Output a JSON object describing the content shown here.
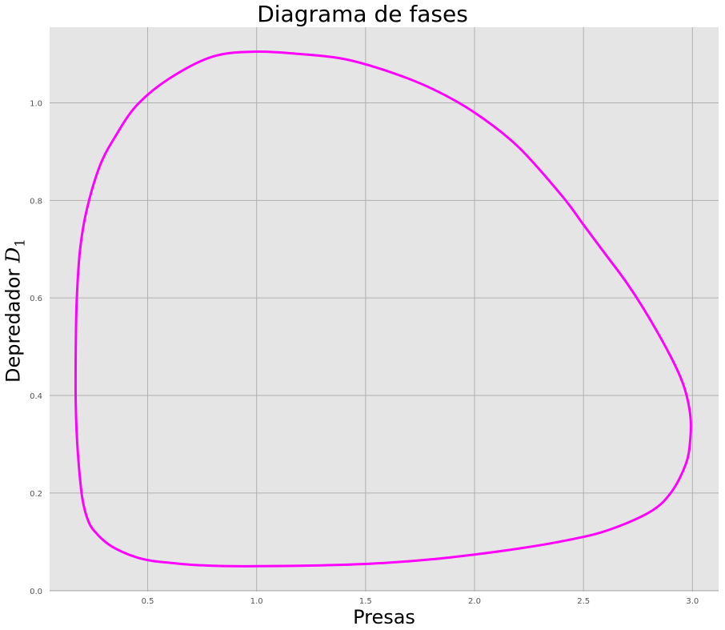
{
  "chart_data": {
    "type": "line",
    "title": "Diagrama de fases",
    "xlabel": "Presas",
    "ylabel_text": "Depredador",
    "ylabel_symbol": "D",
    "ylabel_subscript": "1",
    "xlim": [
      0.05,
      3.12
    ],
    "ylim": [
      -0.002,
      1.155
    ],
    "xticks": [
      "0.5",
      "1.0",
      "1.5",
      "2.0",
      "2.5",
      "3.0"
    ],
    "yticks": [
      "0.0",
      "0.2",
      "0.4",
      "0.6",
      "0.8",
      "1.0"
    ],
    "grid": true,
    "line_color": "#ff00ff",
    "background_color": "#e5e5e5",
    "series": [
      {
        "x": [
          1.0,
          1.2,
          1.4,
          1.6,
          1.8,
          2.0,
          2.2,
          2.4,
          2.6,
          2.8,
          2.9,
          2.97,
          2.99,
          2.99,
          2.96,
          2.9,
          2.8,
          2.7,
          2.6,
          2.5,
          2.4,
          2.2,
          2.0,
          1.8,
          1.6,
          1.4,
          1.2,
          1.0,
          0.8,
          0.6,
          0.45,
          0.35,
          0.28,
          0.22,
          0.19,
          0.175,
          0.17,
          0.17,
          0.18,
          0.2,
          0.23,
          0.27,
          0.32,
          0.38,
          0.45,
          0.52,
          0.6,
          0.7,
          0.8,
          0.9,
          1.0
        ],
        "y": [
          0.05,
          0.051,
          0.053,
          0.057,
          0.064,
          0.074,
          0.086,
          0.101,
          0.122,
          0.16,
          0.2,
          0.26,
          0.31,
          0.36,
          0.42,
          0.48,
          0.56,
          0.63,
          0.69,
          0.75,
          0.81,
          0.91,
          0.98,
          1.03,
          1.065,
          1.09,
          1.1,
          1.105,
          1.095,
          1.05,
          0.995,
          0.93,
          0.87,
          0.78,
          0.7,
          0.6,
          0.5,
          0.38,
          0.28,
          0.19,
          0.14,
          0.115,
          0.095,
          0.08,
          0.068,
          0.061,
          0.057,
          0.053,
          0.051,
          0.05,
          0.05
        ]
      }
    ]
  }
}
